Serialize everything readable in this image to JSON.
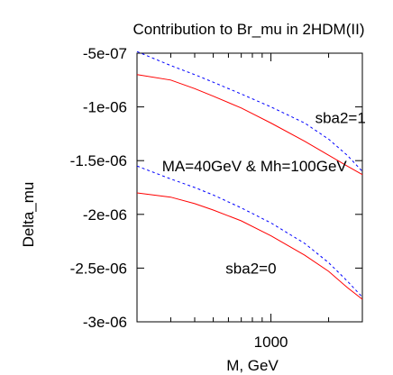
{
  "chart_data": {
    "type": "line",
    "title": "Contribution to Br_mu  in 2HDM(II)",
    "xlabel": "M,  GeV",
    "ylabel": "Delta_mu",
    "x_scale": "log",
    "xlim": [
      200,
      3000
    ],
    "ylim": [
      -3e-06,
      -5e-07
    ],
    "y_inverted": true,
    "x_ticks": [
      1000
    ],
    "x_tick_labels": [
      "1000"
    ],
    "y_ticks": [
      -5e-07,
      -1e-06,
      -1.5e-06,
      -2e-06,
      -2.5e-06,
      -3e-06
    ],
    "y_tick_labels": [
      "-5e-07",
      "-1e-06",
      "-1.5e-06",
      "-2e-06",
      "-2.5e-06",
      "-3e-06"
    ],
    "grid": false,
    "legend": "none",
    "annotations": [
      {
        "text": "sba2=1",
        "x": 1700,
        "y": -1.1e-06
      },
      {
        "text": "MA=40GeV & Mh=100GeV",
        "x": 270,
        "y": -1.55e-06
      },
      {
        "text": "sba2=0",
        "x": 580,
        "y": -2.5e-06
      }
    ],
    "series": [
      {
        "style": "solid",
        "color": "#ff0000",
        "x": [
          200,
          300,
          400,
          500,
          700,
          1000,
          1500,
          2000,
          2500,
          3000
        ],
        "y": [
          -7e-07,
          -7.5e-07,
          -8.3e-07,
          -9e-07,
          -1.01e-06,
          -1.15e-06,
          -1.32e-06,
          -1.45e-06,
          -1.55e-06,
          -1.63e-06
        ]
      },
      {
        "style": "dashed",
        "color": "#0000ff",
        "x": [
          200,
          300,
          400,
          500,
          700,
          1000,
          1500,
          2000,
          2500,
          3000
        ],
        "y": [
          -4.85e-07,
          -6.15e-07,
          -7e-07,
          -7.7e-07,
          -8.8e-07,
          -1e-06,
          -1.15e-06,
          -1.3e-06,
          -1.45e-06,
          -1.6e-06
        ]
      },
      {
        "style": "solid",
        "color": "#ff0000",
        "x": [
          200,
          300,
          400,
          500,
          700,
          1000,
          1500,
          2000,
          2500,
          3000
        ],
        "y": [
          -1.8e-06,
          -1.84e-06,
          -1.9e-06,
          -1.96e-06,
          -2.06e-06,
          -2.2e-06,
          -2.38e-06,
          -2.53e-06,
          -2.68e-06,
          -2.79e-06
        ]
      },
      {
        "style": "dashed",
        "color": "#0000ff",
        "x": [
          200,
          300,
          400,
          500,
          700,
          1000,
          1500,
          2000,
          2500,
          3000
        ],
        "y": [
          -1.55e-06,
          -1.67e-06,
          -1.75e-06,
          -1.82e-06,
          -1.94e-06,
          -2.08e-06,
          -2.27e-06,
          -2.45e-06,
          -2.62e-06,
          -2.77e-06
        ]
      }
    ]
  }
}
